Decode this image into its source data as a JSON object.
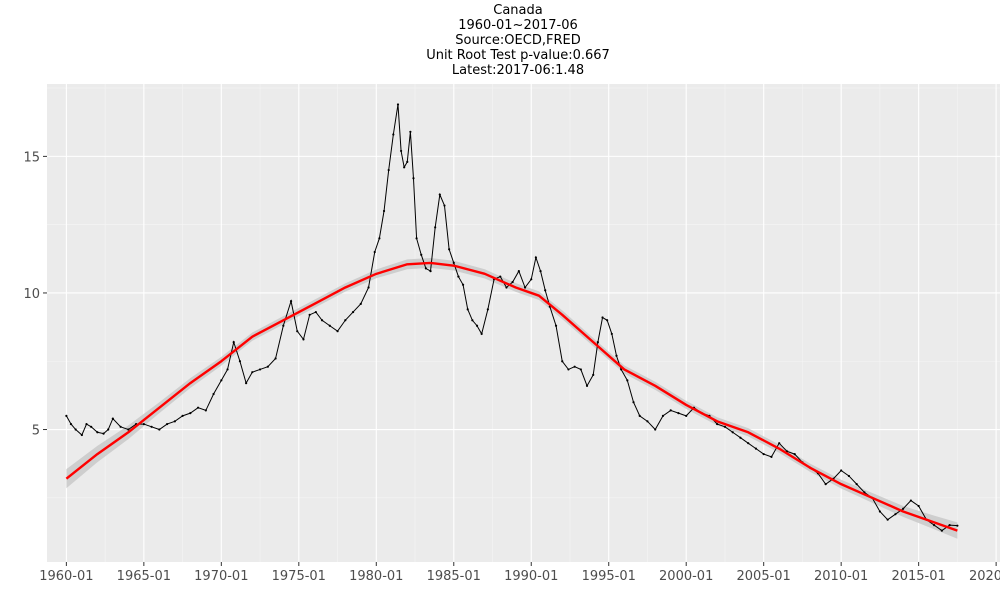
{
  "chart_data": {
    "type": "line",
    "title_lines": [
      "Canada",
      "1960-01~2017-06",
      "Source:OECD,FRED",
      "Unit Root Test p-value:0.667",
      "Latest:2017-06:1.48"
    ],
    "xlabel": "",
    "ylabel": "",
    "x_tick_labels": [
      "1960-01",
      "1965-01",
      "1970-01",
      "1975-01",
      "1980-01",
      "1985-01",
      "1990-01",
      "1995-01",
      "2000-01",
      "2005-01",
      "2010-01",
      "2015-01",
      "2020-01"
    ],
    "y_ticks": [
      5,
      10,
      15
    ],
    "xlim": [
      1958.75,
      2020.25
    ],
    "ylim": [
      0.15,
      17.65
    ],
    "grid": true,
    "legend": "none",
    "colors": {
      "panel": "#ebebeb",
      "grid_major": "#ffffff",
      "grid_minor": "#f5f5f5",
      "data_line": "#000000",
      "trend_line": "#ff0000",
      "trend_band": "#c9c9c9",
      "tick_text": "#4d4d4d"
    },
    "series": [
      {
        "kind": "observed",
        "x": [
          1960.0,
          1960.3,
          1960.6,
          1961.0,
          1961.3,
          1961.6,
          1962.0,
          1962.4,
          1962.7,
          1963.0,
          1963.5,
          1964.0,
          1964.5,
          1965.0,
          1965.5,
          1966.0,
          1966.5,
          1967.0,
          1967.5,
          1968.0,
          1968.5,
          1969.0,
          1969.5,
          1970.0,
          1970.4,
          1970.8,
          1971.2,
          1971.6,
          1972.0,
          1972.5,
          1973.0,
          1973.5,
          1974.0,
          1974.5,
          1974.9,
          1975.3,
          1975.7,
          1976.1,
          1976.5,
          1977.0,
          1977.5,
          1978.0,
          1978.5,
          1979.0,
          1979.5,
          1979.9,
          1980.2,
          1980.5,
          1980.8,
          1981.1,
          1981.4,
          1981.6,
          1981.8,
          1982.0,
          1982.2,
          1982.4,
          1982.6,
          1982.9,
          1983.2,
          1983.5,
          1983.8,
          1984.1,
          1984.4,
          1984.7,
          1985.0,
          1985.3,
          1985.6,
          1985.9,
          1986.2,
          1986.5,
          1986.8,
          1987.2,
          1987.6,
          1988.0,
          1988.4,
          1988.8,
          1989.2,
          1989.6,
          1990.0,
          1990.3,
          1990.6,
          1990.9,
          1991.2,
          1991.6,
          1992.0,
          1992.4,
          1992.8,
          1993.2,
          1993.6,
          1994.0,
          1994.3,
          1994.6,
          1994.9,
          1995.2,
          1995.5,
          1995.8,
          1996.2,
          1996.6,
          1997.0,
          1997.5,
          1998.0,
          1998.5,
          1999.0,
          1999.5,
          2000.0,
          2000.5,
          2001.0,
          2001.5,
          2002.0,
          2002.5,
          2003.0,
          2003.5,
          2004.0,
          2004.5,
          2005.0,
          2005.5,
          2006.0,
          2006.5,
          2007.0,
          2007.5,
          2008.0,
          2008.5,
          2009.0,
          2009.5,
          2010.0,
          2010.5,
          2011.0,
          2011.5,
          2012.0,
          2012.5,
          2013.0,
          2013.5,
          2014.0,
          2014.5,
          2015.0,
          2015.5,
          2016.0,
          2016.5,
          2017.0,
          2017.5
        ],
        "y": [
          5.5,
          5.2,
          5.0,
          4.8,
          5.2,
          5.1,
          4.9,
          4.85,
          5.0,
          5.4,
          5.1,
          5.0,
          5.2,
          5.2,
          5.1,
          5.0,
          5.2,
          5.3,
          5.5,
          5.6,
          5.8,
          5.7,
          6.3,
          6.8,
          7.2,
          8.2,
          7.5,
          6.7,
          7.1,
          7.2,
          7.3,
          7.6,
          8.8,
          9.7,
          8.6,
          8.3,
          9.2,
          9.3,
          9.0,
          8.8,
          8.6,
          9.0,
          9.3,
          9.6,
          10.2,
          11.5,
          12.0,
          13.0,
          14.5,
          15.8,
          16.9,
          15.2,
          14.6,
          14.8,
          15.9,
          14.2,
          12.0,
          11.4,
          10.9,
          10.8,
          12.4,
          13.6,
          13.2,
          11.6,
          11.1,
          10.6,
          10.3,
          9.4,
          9.0,
          8.8,
          8.5,
          9.4,
          10.5,
          10.6,
          10.2,
          10.4,
          10.8,
          10.2,
          10.5,
          11.3,
          10.8,
          10.1,
          9.5,
          8.8,
          7.5,
          7.2,
          7.3,
          7.2,
          6.6,
          7.0,
          8.2,
          9.1,
          9.0,
          8.5,
          7.7,
          7.2,
          6.8,
          6.0,
          5.5,
          5.3,
          5.0,
          5.5,
          5.7,
          5.6,
          5.5,
          5.8,
          5.6,
          5.5,
          5.2,
          5.1,
          4.9,
          4.7,
          4.5,
          4.3,
          4.1,
          4.0,
          4.5,
          4.2,
          4.1,
          3.8,
          3.6,
          3.4,
          3.0,
          3.2,
          3.5,
          3.3,
          3.0,
          2.7,
          2.5,
          2.0,
          1.7,
          1.9,
          2.1,
          2.4,
          2.2,
          1.7,
          1.5,
          1.3,
          1.5,
          1.48
        ]
      },
      {
        "kind": "smoothed_trend",
        "x": [
          1960.0,
          1962.0,
          1964.0,
          1966.0,
          1968.0,
          1970.0,
          1972.0,
          1974.0,
          1976.0,
          1978.0,
          1980.0,
          1982.0,
          1983.5,
          1985.0,
          1987.0,
          1989.0,
          1990.5,
          1992.0,
          1994.0,
          1996.0,
          1998.0,
          2000.0,
          2002.0,
          2004.0,
          2006.0,
          2008.0,
          2010.0,
          2012.0,
          2014.0,
          2016.0,
          2017.5
        ],
        "y": [
          3.2,
          4.1,
          4.9,
          5.8,
          6.7,
          7.5,
          8.4,
          9.0,
          9.6,
          10.2,
          10.7,
          11.05,
          11.1,
          11.0,
          10.7,
          10.2,
          9.9,
          9.2,
          8.2,
          7.2,
          6.6,
          5.9,
          5.3,
          4.9,
          4.3,
          3.6,
          3.0,
          2.5,
          2.0,
          1.6,
          1.3
        ],
        "band_halfwidth": [
          0.35,
          0.3,
          0.25,
          0.2,
          0.18,
          0.16,
          0.15,
          0.15,
          0.15,
          0.15,
          0.16,
          0.18,
          0.18,
          0.18,
          0.17,
          0.16,
          0.16,
          0.16,
          0.15,
          0.15,
          0.15,
          0.15,
          0.15,
          0.15,
          0.15,
          0.15,
          0.16,
          0.18,
          0.2,
          0.25,
          0.3
        ]
      }
    ]
  }
}
